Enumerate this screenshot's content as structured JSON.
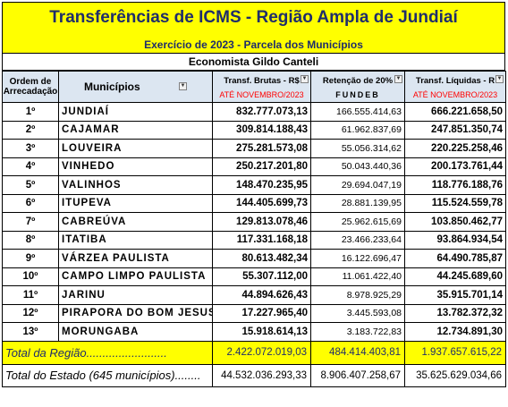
{
  "header": {
    "title": "Transferências de ICMS - Região Ampla de Jundiaí",
    "subtitle": "Exercício de 2023 - Parcela dos Municípios",
    "author": "Economista Gildo Canteli"
  },
  "columns": {
    "ordem": "Ordem de Arrecadação",
    "municipios": "Municípios",
    "brutas": "Transf. Brutas - R$",
    "brutas_period": "ATÉ NOVEMBRO/2023",
    "retencao": "Retenção de 20%",
    "retencao_sub": "FUNDEB",
    "liquidas": "Transf. Líquidas - R",
    "liquidas_period": "ATÉ NOVEMBRO/2023"
  },
  "rows": [
    {
      "ordem": "1º",
      "municipio": "JUNDIAÍ",
      "brutas": "832.777.073,13",
      "retencao": "166.555.414,63",
      "liquidas": "666.221.658,50"
    },
    {
      "ordem": "2º",
      "municipio": "CAJAMAR",
      "brutas": "309.814.188,43",
      "retencao": "61.962.837,69",
      "liquidas": "247.851.350,74"
    },
    {
      "ordem": "3º",
      "municipio": "LOUVEIRA",
      "brutas": "275.281.573,08",
      "retencao": "55.056.314,62",
      "liquidas": "220.225.258,46"
    },
    {
      "ordem": "4º",
      "municipio": "VINHEDO",
      "brutas": "250.217.201,80",
      "retencao": "50.043.440,36",
      "liquidas": "200.173.761,44"
    },
    {
      "ordem": "5º",
      "municipio": "VALINHOS",
      "brutas": "148.470.235,95",
      "retencao": "29.694.047,19",
      "liquidas": "118.776.188,76"
    },
    {
      "ordem": "6º",
      "municipio": "ITUPEVA",
      "brutas": "144.405.699,73",
      "retencao": "28.881.139,95",
      "liquidas": "115.524.559,78"
    },
    {
      "ordem": "7º",
      "municipio": "CABREÚVA",
      "brutas": "129.813.078,46",
      "retencao": "25.962.615,69",
      "liquidas": "103.850.462,77"
    },
    {
      "ordem": "8º",
      "municipio": "ITATIBA",
      "brutas": "117.331.168,18",
      "retencao": "23.466.233,64",
      "liquidas": "93.864.934,54"
    },
    {
      "ordem": "9º",
      "municipio": "VÁRZEA PAULISTA",
      "brutas": "80.613.482,34",
      "retencao": "16.122.696,47",
      "liquidas": "64.490.785,87"
    },
    {
      "ordem": "10º",
      "municipio": "CAMPO LIMPO PAULISTA",
      "brutas": "55.307.112,00",
      "retencao": "11.061.422,40",
      "liquidas": "44.245.689,60"
    },
    {
      "ordem": "11º",
      "municipio": "JARINU",
      "brutas": "44.894.626,43",
      "retencao": "8.978.925,29",
      "liquidas": "35.915.701,14"
    },
    {
      "ordem": "12º",
      "municipio": "PIRAPORA DO BOM JESUS",
      "brutas": "17.227.965,40",
      "retencao": "3.445.593,08",
      "liquidas": "13.782.372,32"
    },
    {
      "ordem": "13º",
      "municipio": "MORUNGABA",
      "brutas": "15.918.614,13",
      "retencao": "3.183.722,83",
      "liquidas": "12.734.891,30"
    }
  ],
  "total_regiao": {
    "label": "Total da Região.........................",
    "brutas": "2.422.072.019,03",
    "retencao": "484.414.403,81",
    "liquidas": "1.937.657.615,22"
  },
  "total_estado": {
    "label": "Total do Estado (645 municípios)........",
    "brutas": "44.532.036.293,33",
    "retencao": "8.906.407.258,67",
    "liquidas": "35.625.629.034,66"
  },
  "colors": {
    "highlight": "#ffff00",
    "header_bg": "#dce6f1",
    "title_text": "#1f2d6b",
    "period_text": "#ff0000"
  }
}
